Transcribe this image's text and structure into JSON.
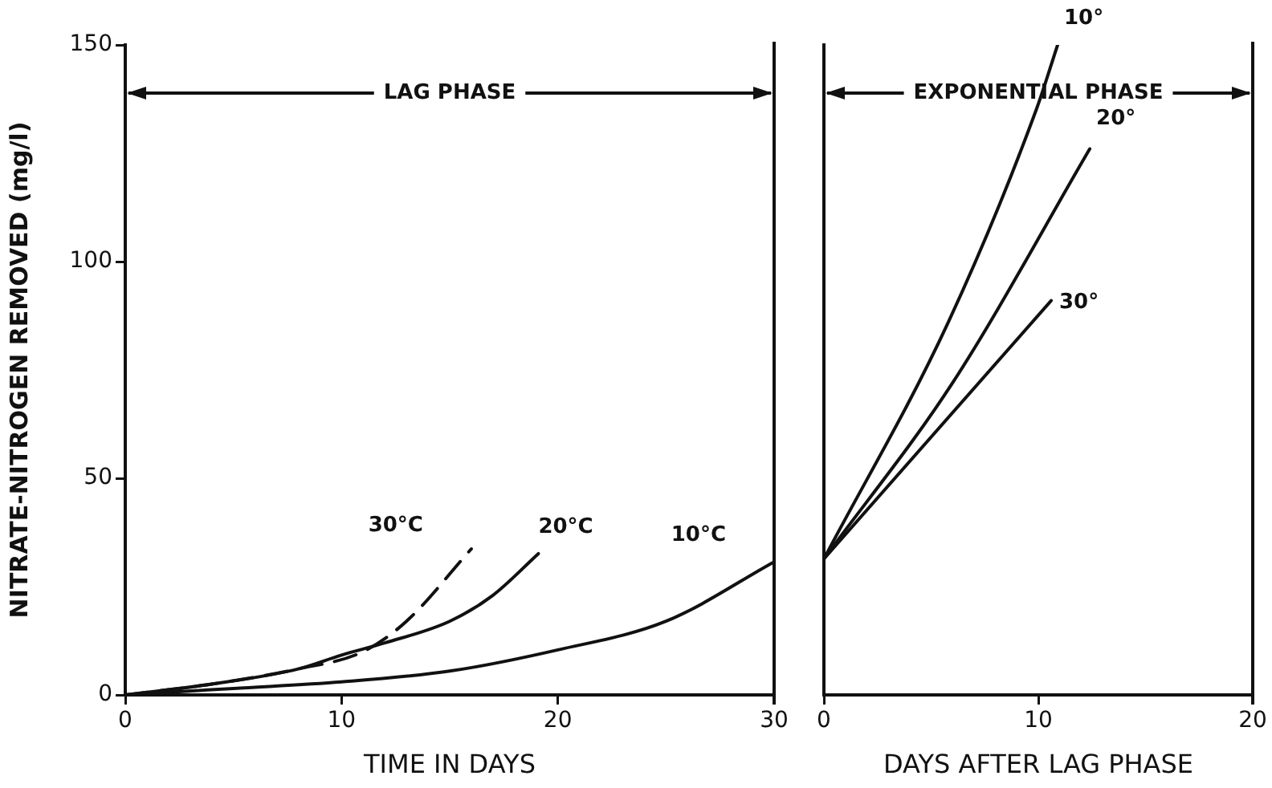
{
  "chart_data": [
    {
      "type": "line",
      "xlabel": "TIME IN DAYS",
      "ylabel": "NITRATE-NITROGEN REMOVED (mg/l)",
      "xlim": [
        0,
        30
      ],
      "xticks": [
        0,
        10,
        20,
        30
      ],
      "ylim": [
        0,
        150
      ],
      "yticks": [
        0,
        50,
        100,
        150
      ],
      "grid": false,
      "legend": false,
      "marker": "none",
      "annotations": [
        "LAG PHASE"
      ],
      "series": [
        {
          "name": "30°C",
          "color": "#111111",
          "line_style": "dashed",
          "x": [
            0,
            4,
            8,
            11,
            13,
            16
          ],
          "values": [
            0,
            2.5,
            6,
            10,
            17,
            33.7
          ]
        },
        {
          "name": "20°C",
          "color": "#111111",
          "line_style": "solid",
          "x": [
            0,
            4,
            8,
            10,
            12,
            15,
            17,
            19.1
          ],
          "values": [
            0,
            2.5,
            6,
            9.2,
            12,
            17,
            23,
            32.6
          ]
        },
        {
          "name": "10°C",
          "color": "#111111",
          "line_style": "solid",
          "x": [
            0,
            5,
            10,
            15,
            20,
            25,
            30
          ],
          "values": [
            0,
            1.5,
            3,
            5.5,
            10.4,
            17,
            30.7
          ]
        }
      ]
    },
    {
      "type": "line",
      "xlabel": "DAYS AFTER LAG PHASE",
      "xlim": [
        0,
        20
      ],
      "xticks": [
        0,
        10,
        20
      ],
      "ylim": [
        0,
        150
      ],
      "yticks": [
        0,
        50,
        100,
        150
      ],
      "tick_labels": "x",
      "grid": false,
      "legend": false,
      "marker": "none",
      "annotations": [
        "EXPONENTIAL PHASE"
      ],
      "series": [
        {
          "name": "10°",
          "color": "#111111",
          "line_style": "solid",
          "x": [
            0,
            5.8,
            9.9,
            10.9
          ],
          "values": [
            31.4,
            86,
            135,
            150
          ]
        },
        {
          "name": "20°",
          "color": "#111111",
          "line_style": "solid",
          "x": [
            0,
            6,
            12.4
          ],
          "values": [
            31.4,
            72,
            126
          ]
        },
        {
          "name": "30°",
          "color": "#111111",
          "line_style": "solid",
          "x": [
            0,
            10.6
          ],
          "values": [
            31.4,
            91
          ]
        }
      ]
    }
  ]
}
